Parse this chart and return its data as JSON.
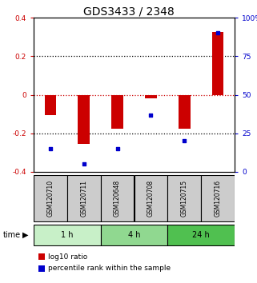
{
  "title": "GDS3433 / 2348",
  "samples": [
    "GSM120710",
    "GSM120711",
    "GSM120648",
    "GSM120708",
    "GSM120715",
    "GSM120716"
  ],
  "log10_ratio": [
    -0.105,
    -0.255,
    -0.175,
    -0.018,
    -0.175,
    0.325
  ],
  "percentile_rank": [
    15,
    5,
    15,
    37,
    20,
    90
  ],
  "groups": [
    {
      "label": "1 h",
      "samples": [
        "GSM120710",
        "GSM120711"
      ],
      "color": "#c8f0c8"
    },
    {
      "label": "4 h",
      "samples": [
        "GSM120648",
        "GSM120708"
      ],
      "color": "#90d890"
    },
    {
      "label": "24 h",
      "samples": [
        "GSM120715",
        "GSM120716"
      ],
      "color": "#50c050"
    }
  ],
  "ylim_left": [
    -0.4,
    0.4
  ],
  "ylim_right": [
    0,
    100
  ],
  "bar_color": "#cc0000",
  "dot_color": "#0000cc",
  "grid_color": "#000000",
  "zero_line_color": "#cc0000",
  "title_fontsize": 10,
  "tick_fontsize": 6.5,
  "bar_width": 0.35,
  "sample_bg_color": "#cccccc",
  "sample_border_color": "#555555"
}
